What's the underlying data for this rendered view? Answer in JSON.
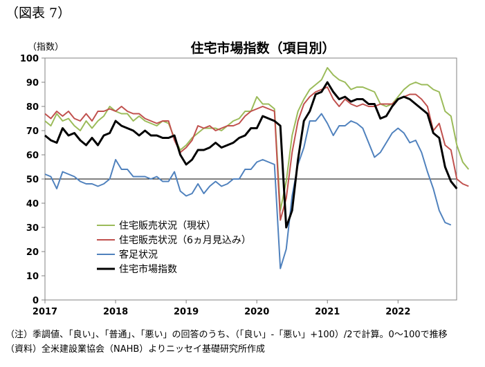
{
  "figure_label": "（図表 7）",
  "notes": [
    "（注）季調値、「良い」、「普通」、「悪い」の回答のうち、（「良い」-「悪い」+100）/2で計算。0～100で推移",
    "（資料）全米建設業協会（NAHB）よりニッセイ基礎研究所作成"
  ],
  "chart_data": {
    "type": "line",
    "title": "住宅市場指数（項目別）",
    "ylabel": "（指数）",
    "ylim": [
      0,
      100
    ],
    "yticks": [
      0,
      10,
      20,
      30,
      40,
      50,
      60,
      70,
      80,
      90,
      100
    ],
    "xlim": [
      2017,
      2022.83
    ],
    "xticks": [
      2017,
      2018,
      2019,
      2020,
      2021,
      2022
    ],
    "reference_line": 50,
    "grid": false,
    "legend_position": "lower-left",
    "x_start": 2017,
    "x_step": 0.0833333,
    "series": [
      {
        "name": "住宅販売状況（現状）",
        "color": "#9bbb59",
        "width": 2,
        "values": [
          74,
          72,
          77,
          74,
          75,
          72,
          70,
          74,
          71,
          74,
          76,
          80,
          78,
          77,
          77,
          74,
          76,
          74,
          73,
          72,
          74,
          73,
          67,
          62,
          64,
          67,
          69,
          71,
          71,
          71,
          70,
          72,
          74,
          75,
          78,
          78,
          84,
          81,
          81,
          79,
          37,
          49,
          68,
          78,
          83,
          87,
          89,
          91,
          96,
          93,
          91,
          90,
          87,
          88,
          88,
          87,
          86,
          81,
          80,
          81,
          84,
          87,
          89,
          90,
          89,
          89,
          87,
          86,
          78,
          76,
          64,
          57,
          54
        ],
        "colors": {}
      },
      {
        "name": "住宅販売状況（6ヵ月見込み）",
        "color": "#c0504d",
        "width": 2,
        "values": [
          77,
          75,
          78,
          76,
          78,
          75,
          74,
          77,
          74,
          78,
          78,
          79,
          78,
          80,
          78,
          77,
          77,
          75,
          74,
          73,
          74,
          74,
          66,
          61,
          63,
          66,
          72,
          71,
          72,
          70,
          71,
          72,
          72,
          73,
          76,
          78,
          79,
          80,
          79,
          78,
          33,
          42,
          61,
          74,
          81,
          84,
          86,
          87,
          88,
          83,
          80,
          83,
          81,
          80,
          81,
          80,
          80,
          81,
          81,
          81,
          83,
          84,
          85,
          85,
          83,
          80,
          70,
          73,
          64,
          62,
          50,
          48,
          47
        ],
        "colors": {}
      },
      {
        "name": "客足状況",
        "color": "#4f81bd",
        "width": 2,
        "values": [
          52,
          51,
          46,
          53,
          52,
          51,
          49,
          48,
          48,
          47,
          48,
          50,
          58,
          54,
          54,
          51,
          51,
          51,
          50,
          51,
          49,
          49,
          53,
          45,
          43,
          44,
          48,
          44,
          47,
          49,
          47,
          48,
          50,
          50,
          54,
          54,
          57,
          58,
          57,
          56,
          13,
          21,
          43,
          56,
          63,
          74,
          74,
          77,
          73,
          68,
          72,
          72,
          74,
          73,
          71,
          65,
          59,
          61,
          65,
          69,
          71,
          69,
          65,
          66,
          61,
          53,
          46,
          37,
          32,
          31
        ],
        "colors": {}
      },
      {
        "name": "住宅市場指数",
        "color": "#000000",
        "width": 3,
        "values": [
          68,
          66,
          65,
          71,
          68,
          69,
          66,
          64,
          67,
          64,
          68,
          69,
          74,
          72,
          71,
          70,
          68,
          70,
          68,
          68,
          67,
          67,
          68,
          60,
          56,
          58,
          62,
          62,
          63,
          65,
          63,
          64,
          65,
          67,
          68,
          71,
          71,
          76,
          75,
          74,
          72,
          30,
          37,
          58,
          74,
          78,
          85,
          86,
          90,
          86,
          83,
          84,
          82,
          83,
          83,
          81,
          81,
          75,
          76,
          80,
          83,
          84,
          83,
          81,
          79,
          77,
          69,
          67,
          55,
          49,
          46
        ],
        "colors": {}
      }
    ]
  }
}
